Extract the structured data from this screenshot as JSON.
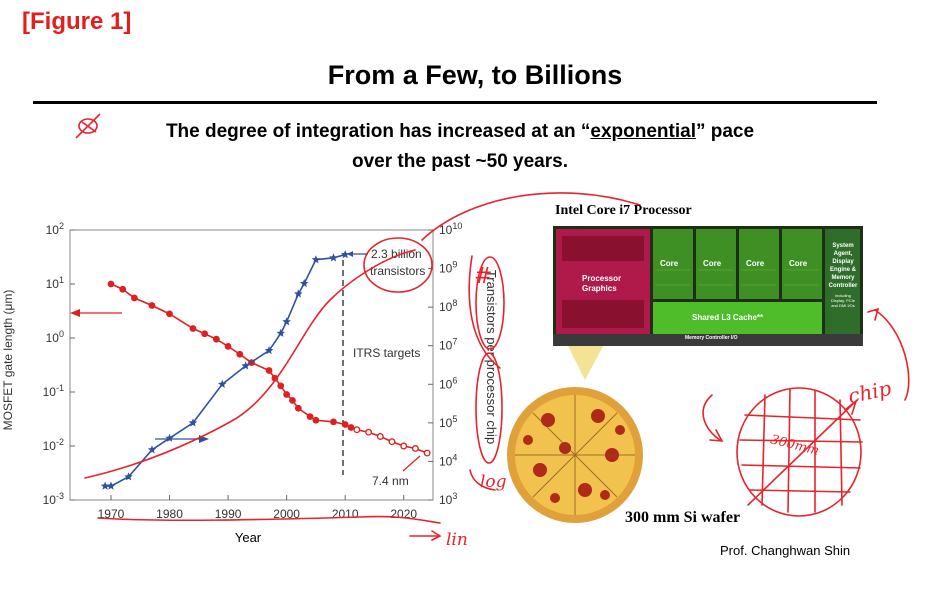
{
  "figure_label": "[Figure 1]",
  "title": "From a Few, to Billions",
  "subtitle": {
    "before": "The degree of integration has increased at an “",
    "emph": "exponential",
    "after": "” pace",
    "line2": "over the past ~50 years."
  },
  "chart_data": {
    "type": "line",
    "xlabel": "Year",
    "ylabel_left": "MOSFET gate length (μm)",
    "ylabel_right": "Transistors per processor chip",
    "x_ticks": [
      1970,
      1980,
      1990,
      2000,
      2010,
      2020
    ],
    "xlim": [
      1963,
      2025
    ],
    "y_left_scale": "log",
    "y_left_ticks": [
      "10^-3",
      "10^-2",
      "10^-1",
      "10^0",
      "10^1",
      "10^2"
    ],
    "y_left_range_exp": [
      -3,
      2
    ],
    "y_right_scale": "log",
    "y_right_ticks": [
      "10^3",
      "10^4",
      "10^5",
      "10^6",
      "10^7",
      "10^8",
      "10^9",
      "10^10"
    ],
    "y_right_range_exp": [
      3,
      10
    ],
    "series": [
      {
        "axis": "left",
        "color": "#e02020",
        "marker": "circle",
        "points": [
          [
            1970,
            10
          ],
          [
            1972,
            8
          ],
          [
            1974,
            5.5
          ],
          [
            1977,
            4
          ],
          [
            1980,
            2.8
          ],
          [
            1984,
            1.5
          ],
          [
            1986,
            1.2
          ],
          [
            1988,
            0.95
          ],
          [
            1990,
            0.7
          ],
          [
            1992,
            0.5
          ],
          [
            1994,
            0.35
          ],
          [
            1997,
            0.25
          ],
          [
            1998,
            0.18
          ],
          [
            1999,
            0.13
          ],
          [
            2000,
            0.09
          ],
          [
            2001,
            0.07
          ],
          [
            2002,
            0.05
          ],
          [
            2004,
            0.035
          ],
          [
            2005,
            0.03
          ],
          [
            2008,
            0.028
          ],
          [
            2010,
            0.025
          ],
          [
            2011,
            0.022
          ]
        ]
      },
      {
        "axis": "left",
        "color": "#e02020",
        "marker": "open-circle",
        "points": [
          [
            2012,
            0.02
          ],
          [
            2014,
            0.018
          ],
          [
            2016,
            0.015
          ],
          [
            2018,
            0.012
          ],
          [
            2020,
            0.01
          ],
          [
            2022,
            0.009
          ],
          [
            2024,
            0.0074
          ]
        ]
      },
      {
        "axis": "right",
        "color": "#3050a0",
        "marker": "star",
        "points": [
          [
            1969,
            2300
          ],
          [
            1970,
            2300
          ],
          [
            1973,
            4000
          ],
          [
            1977,
            20000
          ],
          [
            1980,
            40000
          ],
          [
            1984,
            100000
          ],
          [
            1989,
            1000000
          ],
          [
            1993,
            3000000
          ],
          [
            1997,
            7500000
          ],
          [
            1999,
            21000000
          ],
          [
            2000,
            42000000
          ],
          [
            2002,
            220000000
          ],
          [
            2003,
            410000000
          ],
          [
            2005,
            1700000000
          ],
          [
            2008,
            1900000000
          ],
          [
            2010,
            2300000000
          ]
        ]
      }
    ],
    "annotations": {
      "transistor_callout": [
        "2.3 billion",
        "transistors"
      ],
      "itrs": "ITRS targets",
      "node": "7.4 nm"
    }
  },
  "chip": {
    "title": "Intel Core i7 Processor",
    "graphics": [
      "Processor",
      "Graphics"
    ],
    "cores": [
      "Core",
      "Core",
      "Core",
      "Core"
    ],
    "cache": "Shared L3 Cache**",
    "agent": [
      "System",
      "Agent,",
      "Display",
      "Engine &",
      "Memory",
      "Controller"
    ],
    "agent_small": [
      "including",
      "Display, PCIe",
      "and DMI I/Os"
    ],
    "mem_ctrl": "Memory Controller I/O"
  },
  "handwriting": {
    "hash": "#",
    "log": "log",
    "lin": "lin",
    "chip": "chip",
    "wafer_size": "300mm"
  },
  "wafer_caption": "300 mm Si wafer",
  "author": "Prof. Changhwan Shin",
  "colors": {
    "red": "#e02020",
    "blue": "#3050a0",
    "ink": "#e8232a",
    "figure_label": "#e41e1e"
  }
}
